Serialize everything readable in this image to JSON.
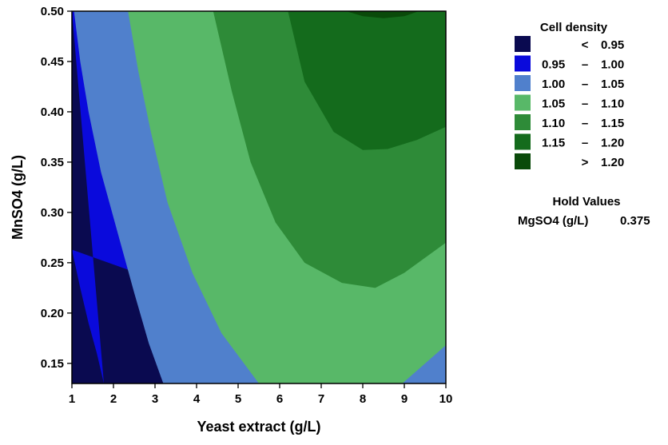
{
  "chart_data": {
    "type": "contour",
    "xlabel": "Yeast extract (g/L)",
    "ylabel": "MnSO4 (g/L)",
    "xlim": [
      1,
      10
    ],
    "ylim": [
      0.13,
      0.5
    ],
    "x_ticks": [
      "1",
      "2",
      "3",
      "4",
      "5",
      "6",
      "7",
      "8",
      "9",
      "10"
    ],
    "y_ticks": [
      "0.15",
      "0.20",
      "0.25",
      "0.30",
      "0.35",
      "0.40",
      "0.45",
      "0.50"
    ],
    "legend": {
      "title": "Cell density",
      "position": "right",
      "levels": [
        {
          "low": "",
          "sep": "<",
          "high": "0.95",
          "color": "#0a0a50"
        },
        {
          "low": "0.95",
          "sep": "–",
          "high": "1.00",
          "color": "#0a0adc"
        },
        {
          "low": "1.00",
          "sep": "–",
          "high": "1.05",
          "color": "#5080cc"
        },
        {
          "low": "1.05",
          "sep": "–",
          "high": "1.10",
          "color": "#58b868"
        },
        {
          "low": "1.10",
          "sep": "–",
          "high": "1.15",
          "color": "#2e8b38"
        },
        {
          "low": "1.15",
          "sep": "–",
          "high": "1.20",
          "color": "#146b1c"
        },
        {
          "low": "",
          "sep": ">",
          "high": "1.20",
          "color": "#0a4a0a"
        }
      ]
    },
    "hold_values": {
      "title": "Hold Values",
      "items": [
        {
          "name": "MgSO4 (g/L)",
          "value": "0.375"
        }
      ]
    },
    "contours": [
      {
        "level": 0.95,
        "points": [
          [
            1,
            0.263
          ],
          [
            1.2,
            0.225
          ],
          [
            1.4,
            0.19
          ],
          [
            1.6,
            0.16
          ],
          [
            1.77,
            0.13
          ]
        ]
      },
      {
        "level": 1.0,
        "points": [
          [
            1.05,
            0.5
          ],
          [
            1.2,
            0.45
          ],
          [
            1.4,
            0.4
          ],
          [
            1.7,
            0.34
          ],
          [
            2.1,
            0.28
          ],
          [
            2.5,
            0.22
          ],
          [
            2.85,
            0.17
          ],
          [
            3.2,
            0.13
          ]
        ]
      },
      {
        "level": 1.05,
        "points": [
          [
            2.35,
            0.5
          ],
          [
            2.6,
            0.44
          ],
          [
            2.9,
            0.38
          ],
          [
            3.3,
            0.31
          ],
          [
            3.9,
            0.24
          ],
          [
            4.6,
            0.18
          ],
          [
            5.5,
            0.13
          ]
        ]
      },
      {
        "level": 1.1,
        "points": [
          [
            4.4,
            0.5
          ],
          [
            4.85,
            0.42
          ],
          [
            5.3,
            0.35
          ],
          [
            5.9,
            0.29
          ],
          [
            6.6,
            0.25
          ],
          [
            7.5,
            0.23
          ],
          [
            8.3,
            0.225
          ],
          [
            9.0,
            0.24
          ],
          [
            10,
            0.27
          ]
        ]
      },
      {
        "level": 1.15,
        "points": [
          [
            6.2,
            0.5
          ],
          [
            6.6,
            0.43
          ],
          [
            7.3,
            0.38
          ],
          [
            8.0,
            0.362
          ],
          [
            8.6,
            0.363
          ],
          [
            9.3,
            0.372
          ],
          [
            10,
            0.385
          ]
        ]
      },
      {
        "level": 1.2,
        "points": [
          [
            7.6,
            0.5
          ],
          [
            8.0,
            0.495
          ],
          [
            8.5,
            0.493
          ],
          [
            9.0,
            0.495
          ],
          [
            9.35,
            0.5
          ]
        ]
      },
      {
        "level": 1.05,
        "points": [
          [
            8.95,
            0.13
          ],
          [
            10,
            0.168
          ]
        ]
      }
    ]
  }
}
